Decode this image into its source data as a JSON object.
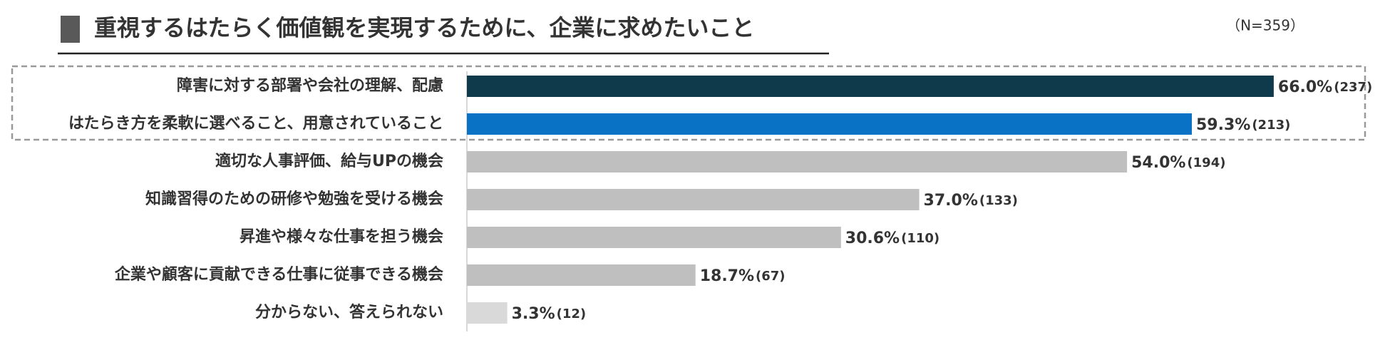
{
  "chart_data": {
    "type": "bar",
    "orientation": "horizontal",
    "title": "重視するはたらく価値観を実現するために、企業に求めたいこと",
    "note": "（N=359）",
    "categories": [
      "障害に対する部署や会社の理解、配慮",
      "はたらき方を柔軟に選べること、用意されていること",
      "適切な人事評価、給与UPの機会",
      "知識習得のための研修や勉強を受ける機会",
      "昇進や様々な仕事を担う機会",
      "企業や顧客に貢献できる仕事に従事できる機会",
      "分からない、答えられない"
    ],
    "values": [
      66.0,
      59.3,
      54.0,
      37.0,
      30.6,
      18.7,
      3.3
    ],
    "value_labels": [
      "66.0%",
      "59.3%",
      "54.0%",
      "37.0%",
      "30.6%",
      "18.7%",
      "3.3%"
    ],
    "counts": [
      237,
      213,
      194,
      133,
      110,
      67,
      12
    ],
    "count_labels": [
      "(237)",
      "(213)",
      "(194)",
      "(133)",
      "(110)",
      "(67)",
      "(12)"
    ],
    "colors": [
      "#0e3a4b",
      "#0a72c4",
      "#bfbfbf",
      "#bfbfbf",
      "#bfbfbf",
      "#bfbfbf",
      "#d9d9d9"
    ]
  }
}
